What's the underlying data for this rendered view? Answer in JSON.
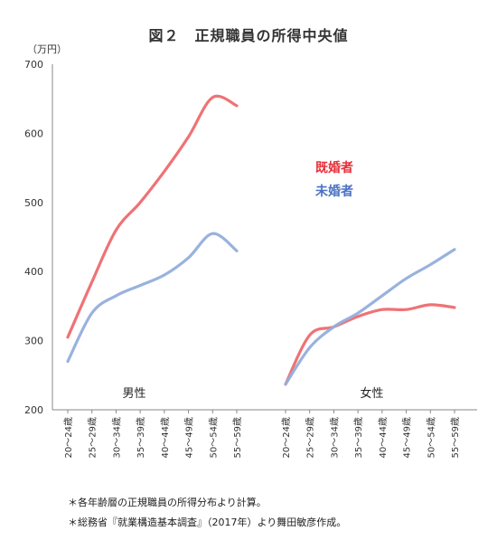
{
  "chart_data": {
    "type": "line",
    "title": "図２　正規職員の所得中央値",
    "ylabel": "（万円）",
    "ylim": [
      200,
      700
    ],
    "yticks": [
      200,
      300,
      400,
      500,
      600,
      700
    ],
    "grid": false,
    "legend_placement": "right",
    "categories": [
      "20～24歳",
      "25～29歳",
      "30～34歳",
      "35～39歳",
      "40～44歳",
      "45～49歳",
      "50～54歳",
      "55～59歳"
    ],
    "panels": [
      {
        "label": "男性",
        "series": [
          {
            "name": "既婚者",
            "color": "#ee6a6e",
            "values": [
              305,
              385,
              460,
              500,
              545,
              595,
              652,
              640
            ]
          },
          {
            "name": "未婚者",
            "color": "#94aedb",
            "values": [
              270,
              340,
              365,
              380,
              395,
              420,
              455,
              430
            ]
          }
        ]
      },
      {
        "label": "女性",
        "series": [
          {
            "name": "既婚者",
            "color": "#ee6a6e",
            "values": [
              237,
              308,
              320,
              335,
              345,
              345,
              352,
              348
            ]
          },
          {
            "name": "未婚者",
            "color": "#94aedb",
            "values": [
              237,
              290,
              320,
              340,
              365,
              390,
              410,
              432
            ]
          }
        ]
      }
    ],
    "legend": [
      {
        "name": "既婚者",
        "color": "#e5303a"
      },
      {
        "name": "未婚者",
        "color": "#4b72c4"
      }
    ]
  },
  "notes": [
    "＊各年齢層の正規職員の所得分布より計算。",
    "＊総務省『就業構造基本調査』（2017年）より舞田敏彦作成。"
  ]
}
